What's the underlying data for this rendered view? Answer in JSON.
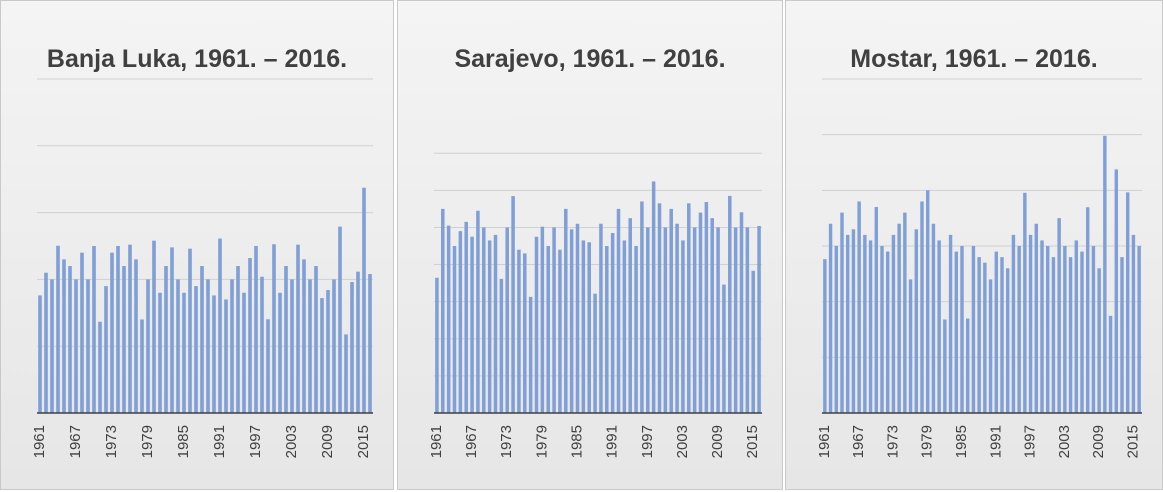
{
  "chart_data": [
    {
      "type": "bar",
      "title": "Banja Luka, 1961. – 2016.",
      "color": "#7f9fd6",
      "grid": true,
      "categories": [
        "1961",
        null,
        null,
        null,
        null,
        null,
        "1967",
        null,
        null,
        null,
        null,
        null,
        "1973",
        null,
        null,
        null,
        null,
        null,
        "1979",
        null,
        null,
        null,
        null,
        null,
        "1985",
        null,
        null,
        null,
        null,
        null,
        "1991",
        null,
        null,
        null,
        null,
        null,
        "1997",
        null,
        null,
        null,
        null,
        null,
        "2003",
        null,
        null,
        null,
        null,
        null,
        "2009",
        null,
        null,
        null,
        null,
        null,
        "2015",
        null
      ],
      "values": [
        880,
        1050,
        1000,
        1252,
        1150,
        1100,
        1000,
        1200,
        1000,
        1250,
        683,
        950,
        1200,
        1250,
        1100,
        1260,
        1150,
        700,
        1000,
        1290,
        900,
        1100,
        1240,
        1000,
        900,
        1230,
        950,
        1100,
        1000,
        880,
        1306,
        850,
        1000,
        1100,
        900,
        1160,
        1250,
        1020,
        701.5,
        1263,
        900,
        1100,
        1000,
        1260,
        1150,
        1000,
        1100,
        860,
        920,
        1000,
        1395,
        588.2,
        980,
        1058,
        1686,
        1040
      ],
      "ylim": [
        0,
        2500
      ],
      "yticks": [
        0,
        500,
        1000,
        1500,
        2000,
        2500
      ]
    },
    {
      "type": "bar",
      "title": "Sarajevo, 1961. – 2016.",
      "color": "#7f9fd6",
      "grid": true,
      "categories": [
        "1961",
        null,
        null,
        null,
        null,
        null,
        "1967",
        null,
        null,
        null,
        null,
        null,
        "1973",
        null,
        null,
        null,
        null,
        null,
        "1979",
        null,
        null,
        null,
        null,
        null,
        "1985",
        null,
        null,
        null,
        null,
        null,
        "1991",
        null,
        null,
        null,
        null,
        null,
        "1997",
        null,
        null,
        null,
        null,
        null,
        "2003",
        null,
        null,
        null,
        null,
        null,
        "2009",
        null,
        null,
        null,
        null,
        null,
        "2015",
        null
      ],
      "values": [
        728.9,
        1100,
        1010,
        900,
        980,
        1030,
        950,
        1090,
        1000,
        930,
        960,
        722.9,
        1000,
        1169,
        880,
        860,
        626,
        950,
        1004,
        900,
        1000,
        880,
        1100,
        990,
        1020,
        930,
        920,
        643,
        1020,
        900,
        970,
        1100,
        930,
        1050,
        900,
        1140,
        1000,
        1248,
        1130,
        1000,
        1100,
        1020,
        930,
        1130,
        1000,
        1080,
        1137,
        1050,
        1000,
        692,
        1170,
        1000,
        1082,
        1000,
        766.3,
        1008
      ],
      "ylim": [
        0,
        1800
      ],
      "yticks": [
        0,
        200,
        400,
        600,
        800,
        1000,
        1200,
        1400
      ]
    },
    {
      "type": "bar",
      "title": "Mostar, 1961. – 2016.",
      "color": "#7f9fd6",
      "grid": true,
      "categories": [
        "1961",
        null,
        null,
        null,
        null,
        null,
        "1967",
        null,
        null,
        null,
        null,
        null,
        "1973",
        null,
        null,
        null,
        null,
        null,
        "1979",
        null,
        null,
        null,
        null,
        null,
        "1985",
        null,
        null,
        null,
        null,
        null,
        "1991",
        null,
        null,
        null,
        null,
        null,
        "1997",
        null,
        null,
        null,
        null,
        null,
        "2003",
        null,
        null,
        null,
        null,
        null,
        "2009",
        null,
        null,
        null,
        null,
        null,
        "2015",
        null
      ],
      "values": [
        1382,
        1700,
        1500,
        1800,
        1600,
        1650,
        1900,
        1600,
        1550,
        1850,
        1500,
        1450,
        1600,
        1700,
        1800,
        1200,
        1650,
        1900,
        2000,
        1700,
        1550,
        840,
        1600,
        1450,
        1500,
        848,
        1500,
        1400,
        1350,
        1200,
        1450,
        1400,
        1300,
        1600,
        1500,
        1978,
        1600,
        1700,
        1550,
        1500,
        1400,
        1750,
        1500,
        1400,
        1550,
        1450,
        1848,
        1500,
        1300,
        2490,
        872.5,
        2188,
        1400,
        1982,
        1600,
        1500
      ],
      "ylim": [
        0,
        3000
      ],
      "yticks": [
        0,
        500,
        1000,
        1500,
        2000,
        2500,
        3000
      ]
    }
  ]
}
